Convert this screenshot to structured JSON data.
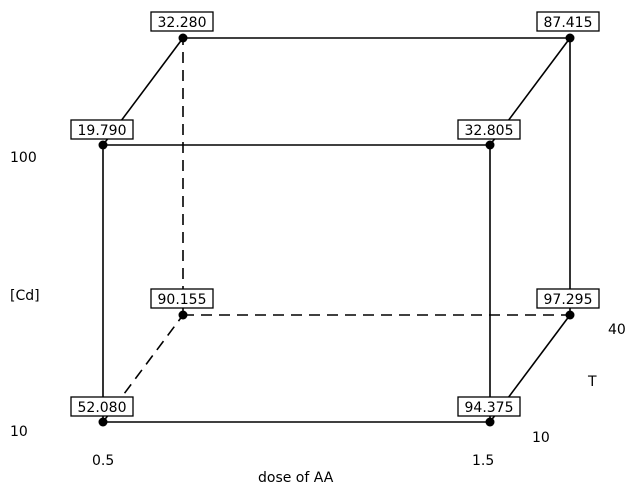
{
  "factors": {
    "x": {
      "label": "dose of AA",
      "low": "0.5",
      "high": "1.5"
    },
    "y": {
      "label": "[Cd]",
      "low": "10",
      "high": "100"
    },
    "z": {
      "label": "T",
      "low": "10",
      "high": "40"
    }
  },
  "vertices": [
    {
      "id": "x-low-y-low-z-low",
      "value": "52.080"
    },
    {
      "id": "x-high-y-low-z-low",
      "value": "94.375"
    },
    {
      "id": "x-low-y-high-z-low",
      "value": "19.790"
    },
    {
      "id": "x-high-y-high-z-low",
      "value": "32.805"
    },
    {
      "id": "x-low-y-low-z-high",
      "value": "90.155"
    },
    {
      "id": "x-high-y-low-z-high",
      "value": "97.295"
    },
    {
      "id": "x-low-y-high-z-high",
      "value": "32.280"
    },
    {
      "id": "x-high-y-high-z-high",
      "value": "87.415"
    }
  ]
}
